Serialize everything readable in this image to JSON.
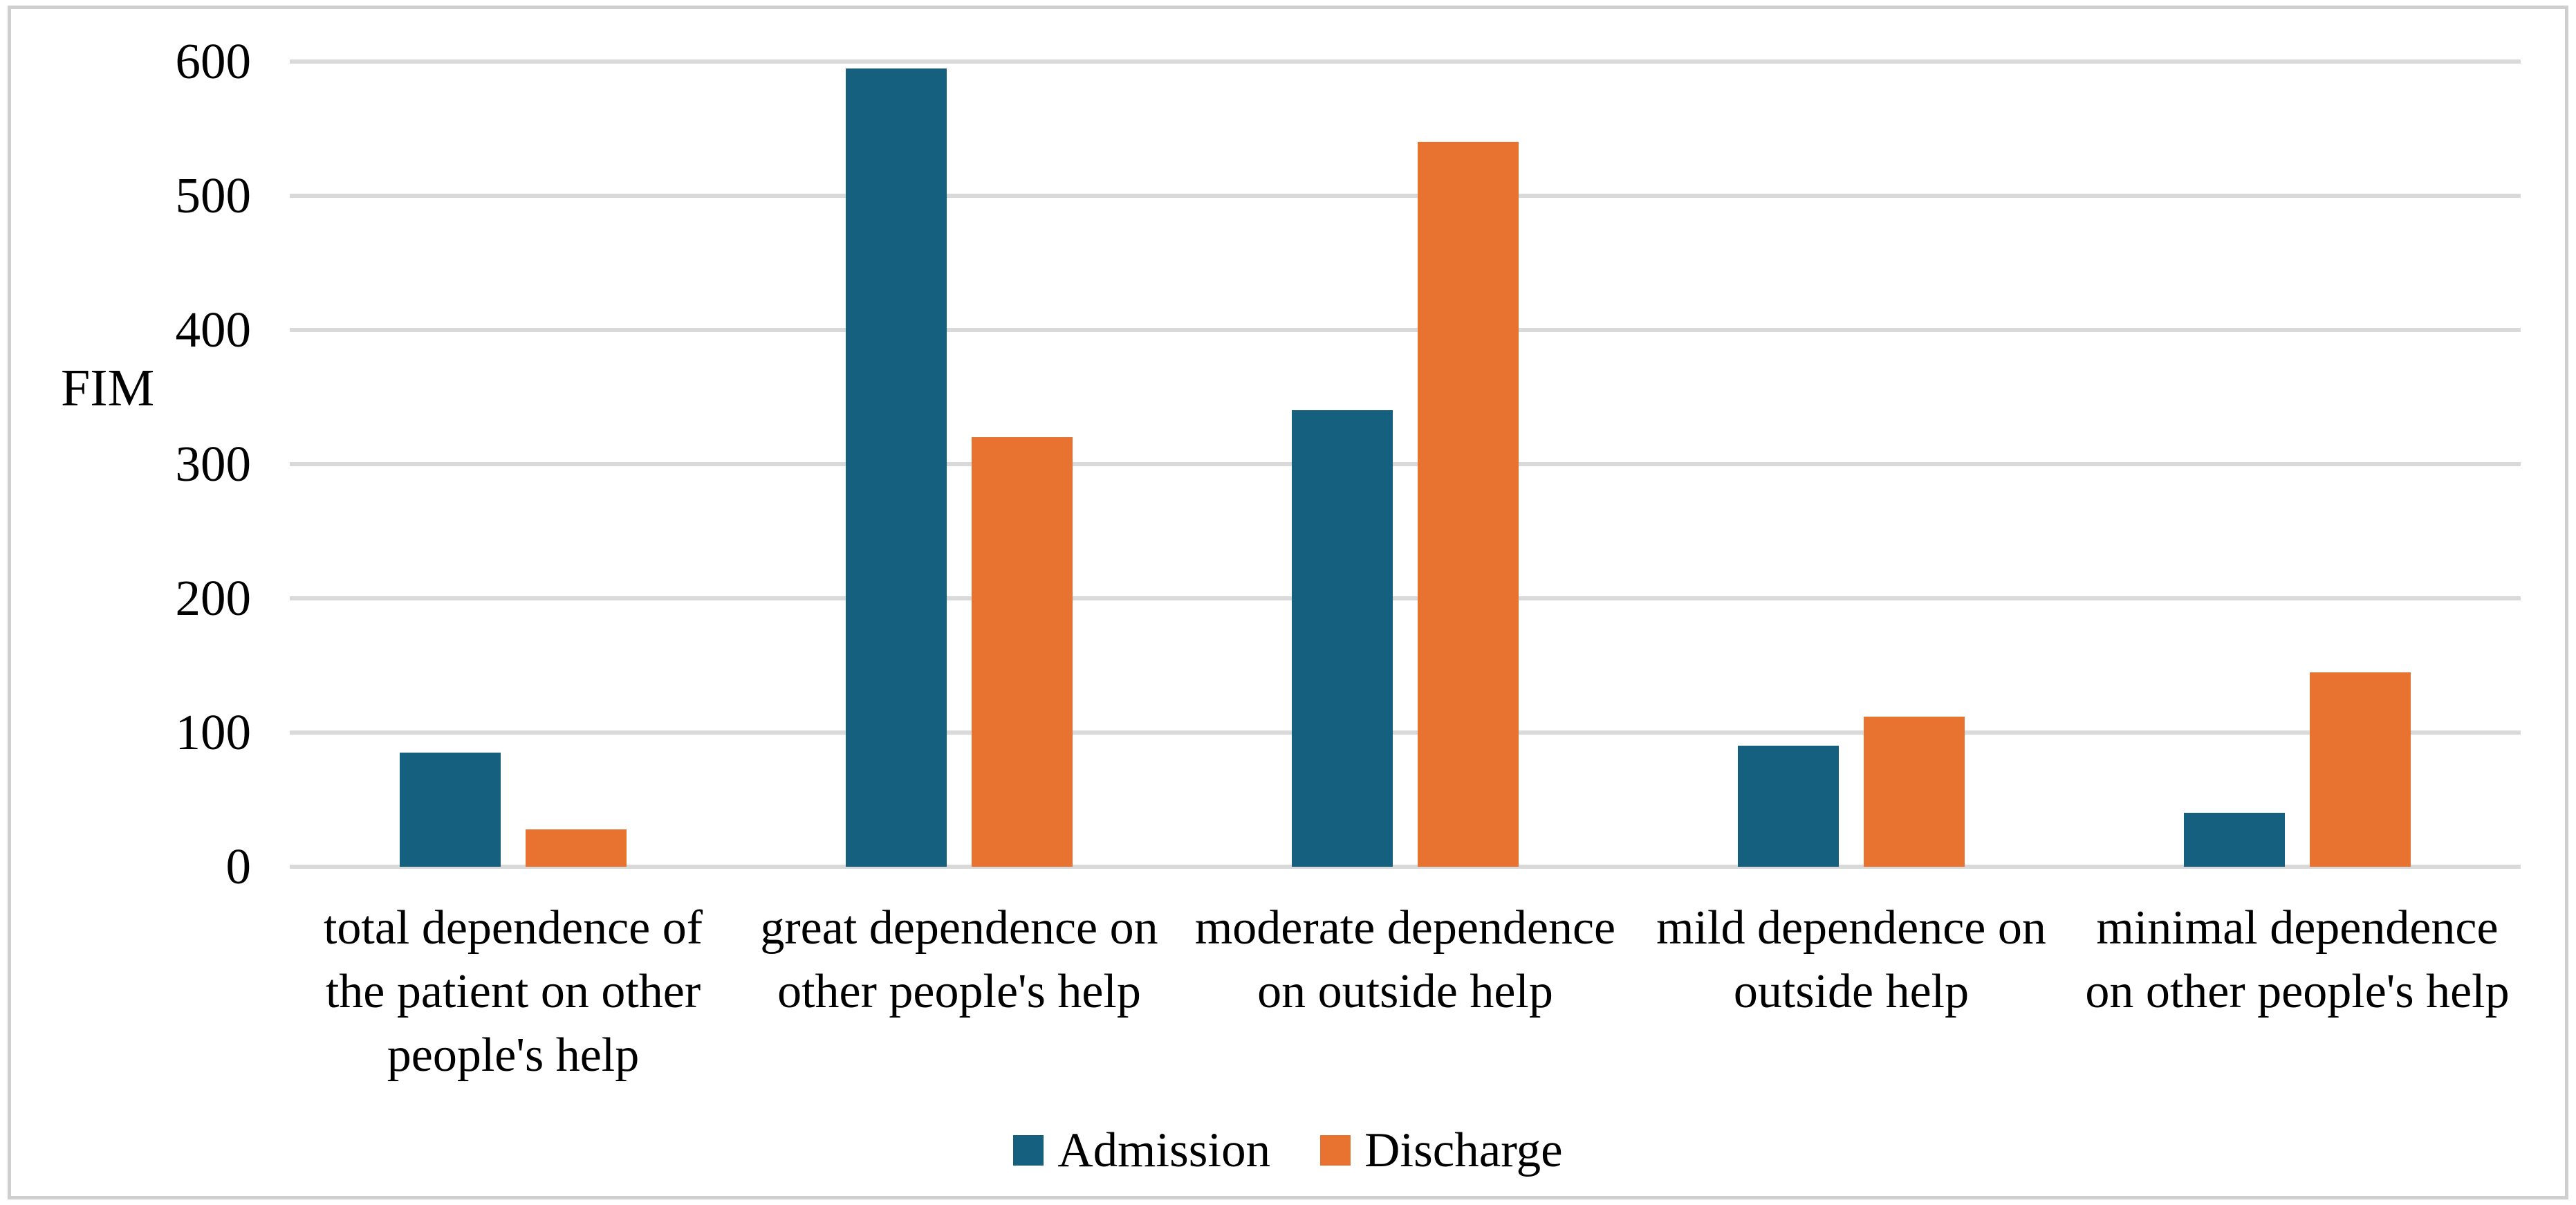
{
  "chart_data": {
    "type": "bar",
    "title": "",
    "ylabel": "FIM",
    "xlabel": "",
    "ylim": [
      0,
      600
    ],
    "yticks": [
      0,
      100,
      200,
      300,
      400,
      500,
      600
    ],
    "grid": "horizontal",
    "legend_position": "bottom-center",
    "categories": [
      {
        "label": "total dependence of the patient on other people's help",
        "lines": [
          "total dependence of",
          "the patient on other",
          "people's help"
        ]
      },
      {
        "label": "great dependence on other people's help",
        "lines": [
          "great dependence on",
          "other people's help"
        ]
      },
      {
        "label": "moderate dependence on outside help",
        "lines": [
          "moderate dependence",
          "on outside help"
        ]
      },
      {
        "label": "mild dependence on outside help",
        "lines": [
          "mild dependence on",
          "outside help"
        ]
      },
      {
        "label": "minimal dependence on other people's help",
        "lines": [
          "minimal dependence",
          "on other people's help"
        ]
      }
    ],
    "series": [
      {
        "name": "Admission",
        "color": "#16607F",
        "values": [
          85,
          595,
          340,
          90,
          40
        ]
      },
      {
        "name": "Discharge",
        "color": "#E8722F",
        "values": [
          28,
          320,
          540,
          112,
          145
        ]
      }
    ],
    "colors": {
      "gridline": "#D9D9D9",
      "frame_border": "#CFCFCF",
      "text": "#000000",
      "background": "#FFFFFF"
    }
  }
}
